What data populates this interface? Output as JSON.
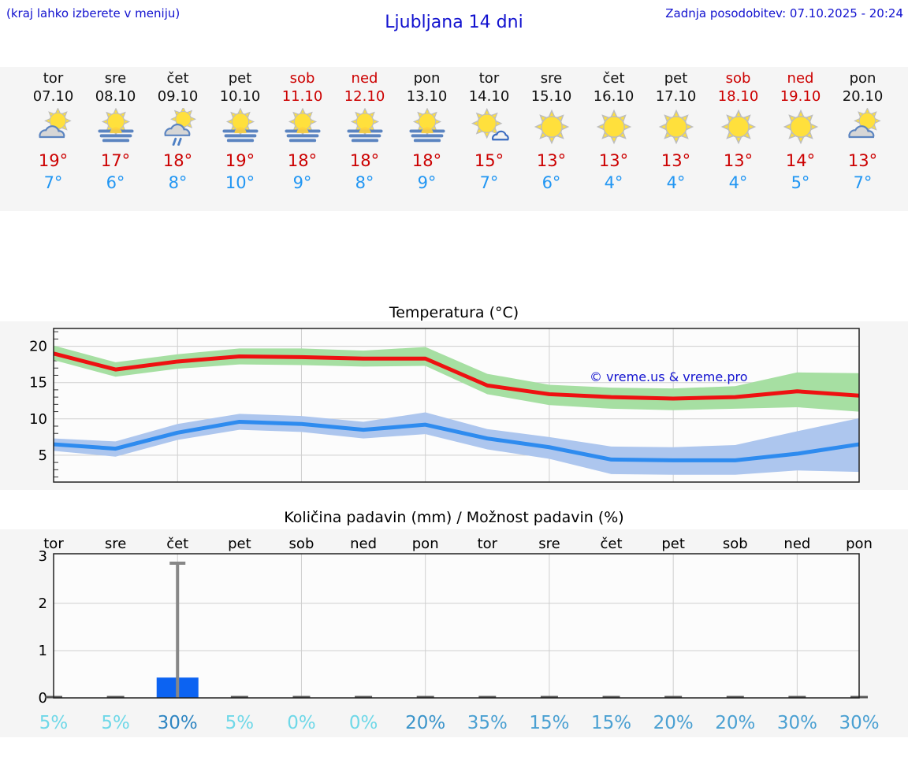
{
  "header": {
    "hint": "(kraj lahko izberete v meniju)",
    "title": "Ljubljana 14 dni",
    "updated": "Zadnja posodobitev: 07.10.2025 - 20:24"
  },
  "colors": {
    "header_blue": "#1212cf",
    "temp_high_red": "#cc0000",
    "temp_low_blue": "#2196f3",
    "band_bg": "#f5f5f5"
  },
  "forecast": {
    "days": [
      {
        "name": "tor",
        "date": "07.10",
        "icon": "cloud-sun",
        "high": "19°",
        "low": "7°",
        "weekend": false
      },
      {
        "name": "sre",
        "date": "08.10",
        "icon": "sun-fog",
        "high": "17°",
        "low": "6°",
        "weekend": false
      },
      {
        "name": "čet",
        "date": "09.10",
        "icon": "cloud-sun-rain",
        "high": "18°",
        "low": "8°",
        "weekend": false
      },
      {
        "name": "pet",
        "date": "10.10",
        "icon": "sun-fog",
        "high": "19°",
        "low": "10°",
        "weekend": false
      },
      {
        "name": "sob",
        "date": "11.10",
        "icon": "sun-fog",
        "high": "18°",
        "low": "9°",
        "weekend": true
      },
      {
        "name": "ned",
        "date": "12.10",
        "icon": "sun-fog",
        "high": "18°",
        "low": "8°",
        "weekend": true
      },
      {
        "name": "pon",
        "date": "13.10",
        "icon": "sun-fog",
        "high": "18°",
        "low": "9°",
        "weekend": false
      },
      {
        "name": "tor",
        "date": "14.10",
        "icon": "sun-cloud-small",
        "high": "15°",
        "low": "7°",
        "weekend": false
      },
      {
        "name": "sre",
        "date": "15.10",
        "icon": "sun",
        "high": "13°",
        "low": "6°",
        "weekend": false
      },
      {
        "name": "čet",
        "date": "16.10",
        "icon": "sun",
        "high": "13°",
        "low": "4°",
        "weekend": false
      },
      {
        "name": "pet",
        "date": "17.10",
        "icon": "sun",
        "high": "13°",
        "low": "4°",
        "weekend": false
      },
      {
        "name": "sob",
        "date": "18.10",
        "icon": "sun",
        "high": "13°",
        "low": "4°",
        "weekend": true
      },
      {
        "name": "ned",
        "date": "19.10",
        "icon": "sun",
        "high": "14°",
        "low": "5°",
        "weekend": true
      },
      {
        "name": "pon",
        "date": "20.10",
        "icon": "cloud-sun",
        "high": "13°",
        "low": "7°",
        "weekend": false
      }
    ]
  },
  "chart_data": [
    {
      "type": "line",
      "title": "Temperatura (°C)",
      "watermark": "© vreme.us & vreme.pro",
      "ylim": [
        1.3,
        22.45
      ],
      "yticks": [
        5,
        10,
        15,
        20
      ],
      "grid": true,
      "x_days": 14,
      "series": [
        {
          "name": "max temperatura",
          "color": "#ee1111",
          "band_color": "#a6dfa2",
          "values": [
            19.0,
            16.8,
            17.9,
            18.6,
            18.5,
            18.3,
            18.3,
            14.6,
            13.4,
            13.0,
            12.8,
            13.0,
            13.8,
            13.2
          ],
          "band_high": [
            20.1,
            17.8,
            18.9,
            19.7,
            19.7,
            19.4,
            19.9,
            16.2,
            14.7,
            14.3,
            14.2,
            14.5,
            16.4,
            16.3
          ],
          "band_low": [
            18.1,
            15.8,
            16.9,
            17.5,
            17.4,
            17.2,
            17.3,
            13.4,
            11.9,
            11.4,
            11.2,
            11.4,
            11.6,
            11.0
          ]
        },
        {
          "name": "min temperatura",
          "color": "#2e8bef",
          "band_color": "#adc6ee",
          "values": [
            6.5,
            5.9,
            8.1,
            9.6,
            9.3,
            8.5,
            9.2,
            7.3,
            6.1,
            4.4,
            4.3,
            4.3,
            5.2,
            6.5
          ],
          "band_high": [
            7.3,
            6.9,
            9.3,
            10.7,
            10.4,
            9.6,
            10.9,
            8.6,
            7.5,
            6.2,
            6.1,
            6.4,
            8.3,
            10.1
          ],
          "band_low": [
            5.6,
            4.8,
            7.1,
            8.5,
            8.2,
            7.3,
            7.9,
            5.8,
            4.5,
            2.4,
            2.3,
            2.3,
            2.9,
            2.7
          ]
        }
      ]
    },
    {
      "type": "bar",
      "title": "Količina padavin (mm) / Možnost padavin (%)",
      "day_labels": [
        "tor",
        "sre",
        "čet",
        "pet",
        "sob",
        "ned",
        "pon",
        "tor",
        "sre",
        "čet",
        "pet",
        "sob",
        "ned",
        "pon"
      ],
      "ylim": [
        0,
        3.05
      ],
      "yticks": [
        0,
        1,
        2,
        3
      ],
      "grid": true,
      "bar_color": "#0c63f2",
      "whisker_color": "#878787",
      "values": [
        0,
        0,
        0.43,
        0,
        0,
        0,
        0,
        0,
        0,
        0,
        0,
        0,
        0,
        0
      ],
      "whisker_high": [
        0,
        0,
        2.85,
        0,
        0,
        0,
        0,
        0,
        0,
        0,
        0,
        0,
        0,
        0
      ],
      "probabilities": [
        {
          "text": "5%",
          "color": "#6fd8e8"
        },
        {
          "text": "5%",
          "color": "#6fd8e8"
        },
        {
          "text": "30%",
          "color": "#2e85c2"
        },
        {
          "text": "5%",
          "color": "#6fd8e8"
        },
        {
          "text": "0%",
          "color": "#6fd8e8"
        },
        {
          "text": "0%",
          "color": "#6fd8e8"
        },
        {
          "text": "20%",
          "color": "#3a94ca"
        },
        {
          "text": "35%",
          "color": "#4aa0d2"
        },
        {
          "text": "15%",
          "color": "#4aa0d2"
        },
        {
          "text": "15%",
          "color": "#4aa0d2"
        },
        {
          "text": "20%",
          "color": "#4aa0d2"
        },
        {
          "text": "20%",
          "color": "#4aa0d2"
        },
        {
          "text": "30%",
          "color": "#4aa0d2"
        },
        {
          "text": "30%",
          "color": "#4aa0d2"
        }
      ]
    }
  ]
}
